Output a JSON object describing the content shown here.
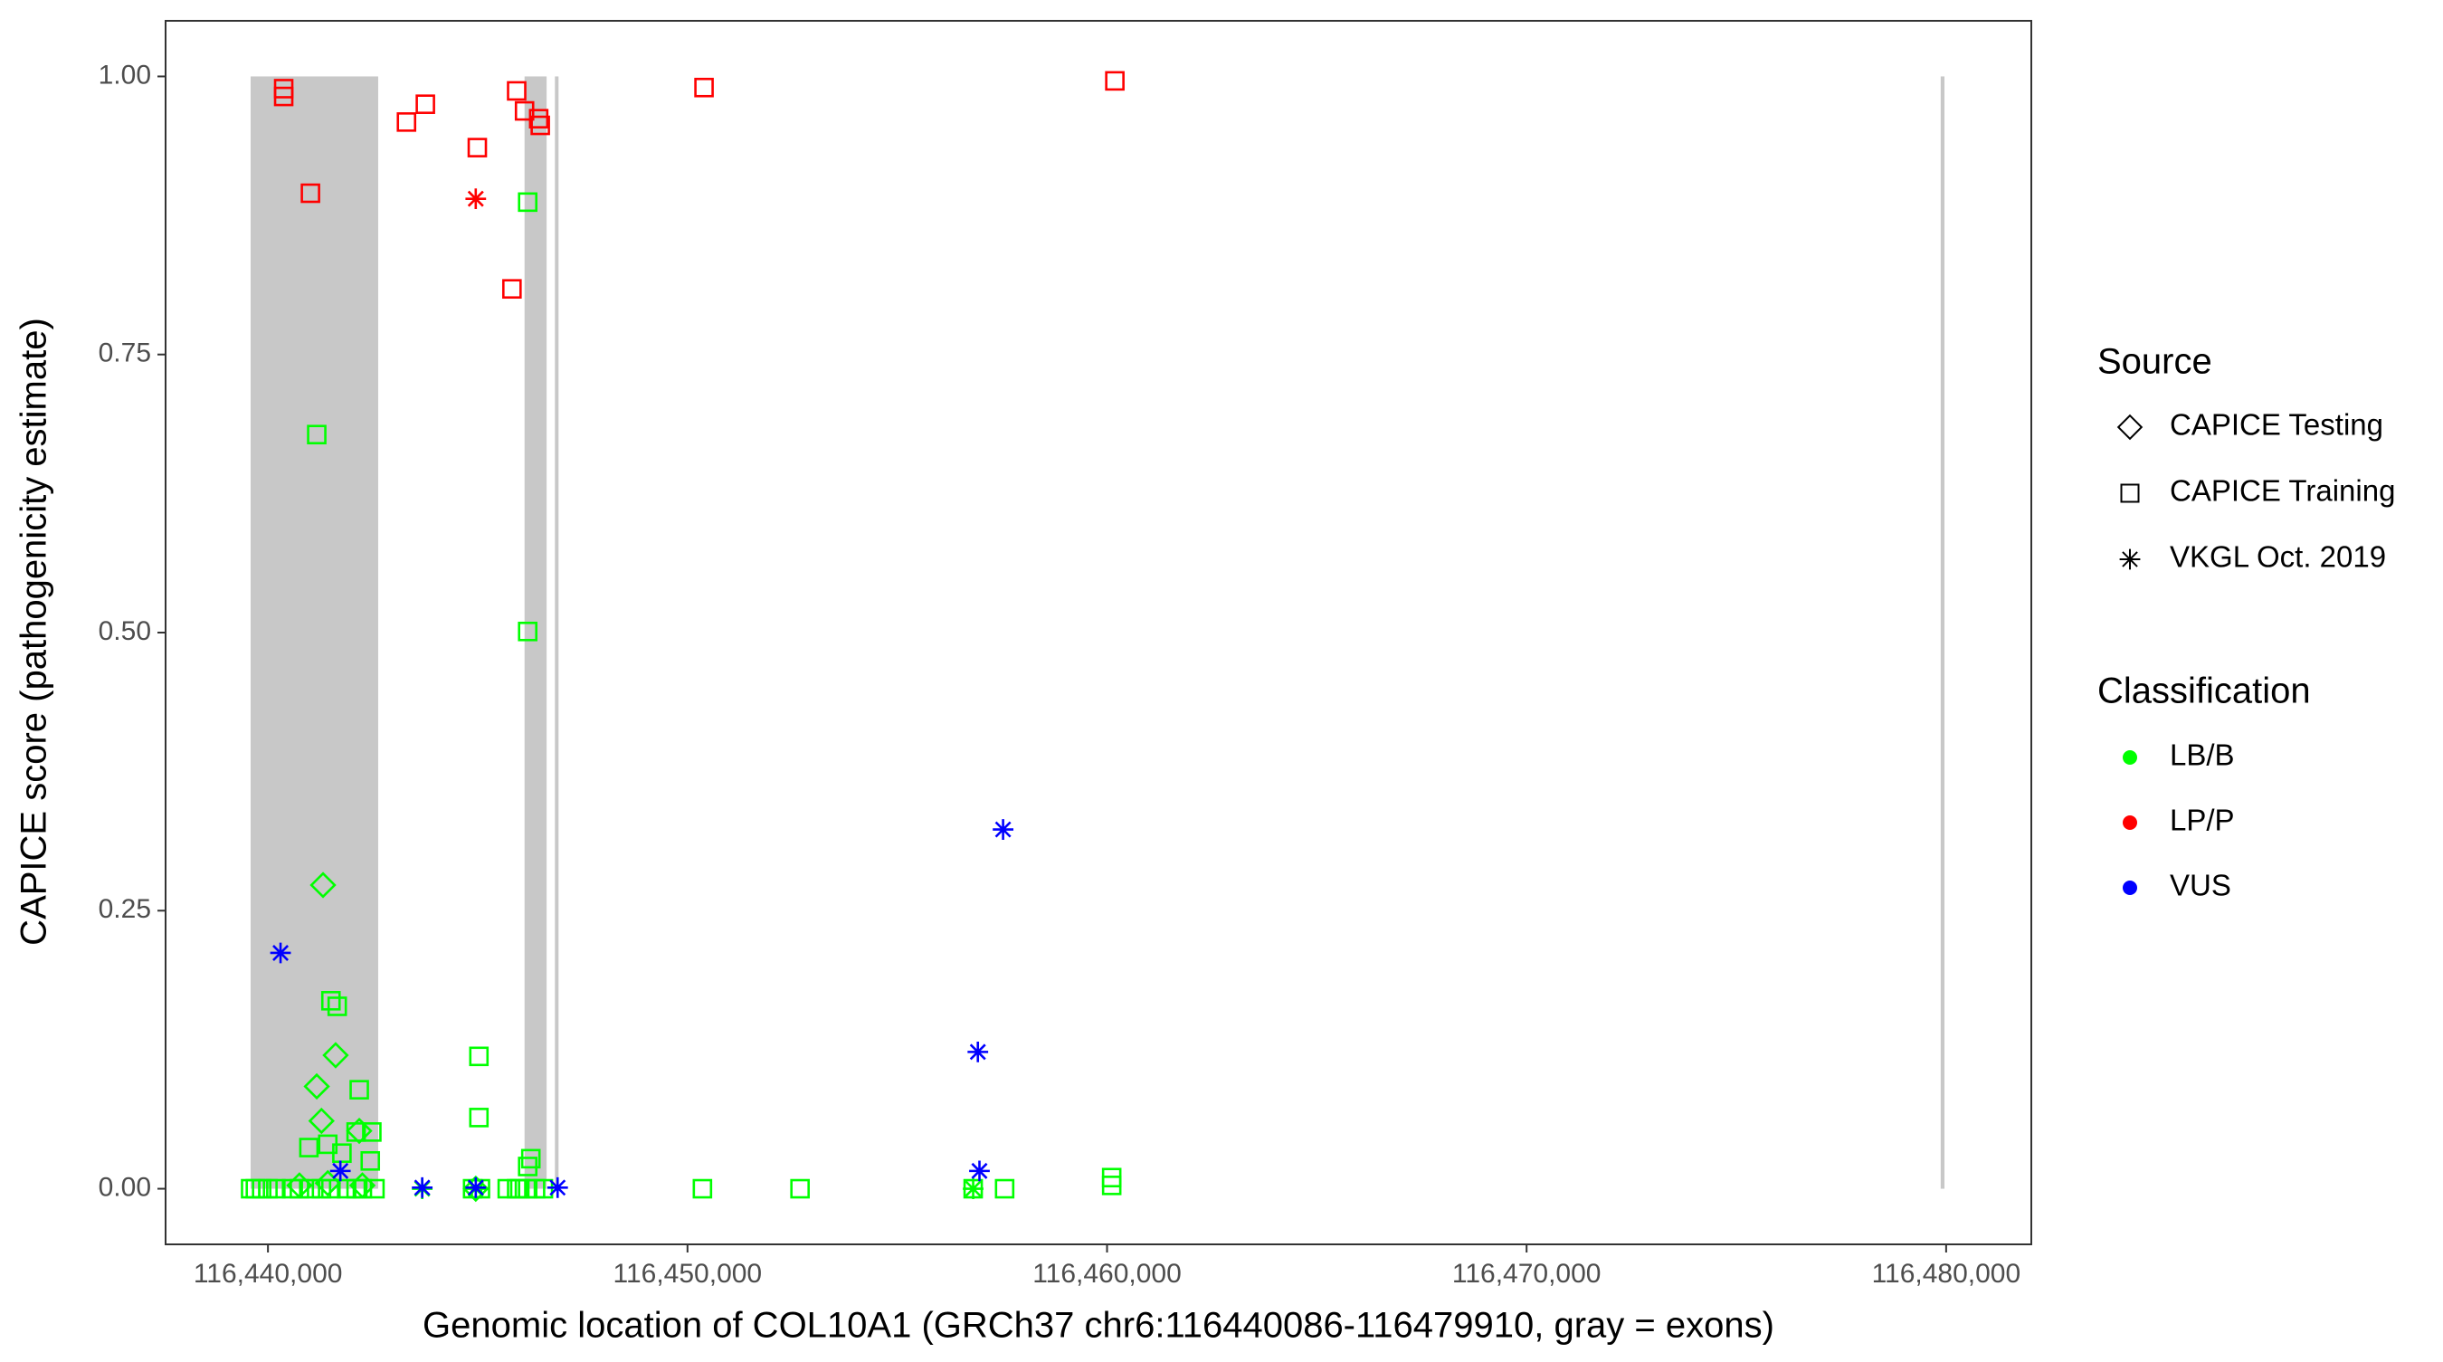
{
  "chart_data": {
    "type": "scatter",
    "x_label": "Genomic location of COL10A1 (GRCh37 chr6:116440086-116479910, gray = exons)",
    "y_label": "CAPICE score (pathogenicity estimate)",
    "xlim": [
      116437560,
      116482030
    ],
    "ylim": [
      -0.05,
      1.05
    ],
    "xticks": [
      {
        "value": 116440000,
        "label": "116,440,000"
      },
      {
        "value": 116450000,
        "label": "116,450,000"
      },
      {
        "value": 116460000,
        "label": "116,460,000"
      },
      {
        "value": 116470000,
        "label": "116,470,000"
      },
      {
        "value": 116480000,
        "label": "116,480,000"
      }
    ],
    "yticks": [
      {
        "value": 0,
        "label": "0.00"
      },
      {
        "value": 0.25,
        "label": "0.25"
      },
      {
        "value": 0.5,
        "label": "0.50"
      },
      {
        "value": 0.75,
        "label": "0.75"
      },
      {
        "value": 1,
        "label": "1.00"
      }
    ],
    "exon_color": "#c8c8c8",
    "exons": [
      [
        116439587,
        116442627
      ],
      [
        116446116,
        116446642
      ],
      [
        116446840,
        116446900
      ],
      [
        116479870,
        116479960
      ]
    ],
    "legend_source_title": "Source",
    "sources": [
      {
        "name": "CAPICE Testing",
        "shape": "diamond"
      },
      {
        "name": "CAPICE Training",
        "shape": "square"
      },
      {
        "name": "VKGL Oct. 2019",
        "shape": "star"
      }
    ],
    "legend_class_title": "Classification",
    "classifications": [
      {
        "name": "LB/B",
        "color": "#00ff00"
      },
      {
        "name": "LP/P",
        "color": "#ff0000"
      },
      {
        "name": "VUS",
        "color": "#0000ff"
      }
    ],
    "series": [
      {
        "shape": "square",
        "color": "#00ff00",
        "x": [
          116441163,
          116446191,
          116446191,
          116445028,
          116445028,
          116441501,
          116441651,
          116442176,
          116442476,
          116442101,
          116440976,
          116441426,
          116441763,
          116442439,
          116446266,
          116446191,
          116460111,
          116460111,
          116439587,
          116439700,
          116439850,
          116440000,
          116440188,
          116440563,
          116440750,
          116441013,
          116441276,
          116441501,
          116441876,
          116442101,
          116442251,
          116442551,
          116444878,
          116445065,
          116445703,
          116445928,
          116446003,
          116446191,
          116446378,
          116446566,
          116450356,
          116452682,
          116456809,
          116457559
        ],
        "y": [
          0.678,
          0.887,
          0.501,
          0.119,
          0.064,
          0.169,
          0.164,
          0.089,
          0.051,
          0.051,
          0.037,
          0.04,
          0.032,
          0.025,
          0.027,
          0.02,
          0.01,
          0.003,
          0,
          0,
          0,
          0,
          0,
          0,
          0,
          0,
          0,
          0,
          0,
          0,
          0,
          0,
          0,
          0,
          0,
          0,
          0,
          0,
          0,
          0,
          0,
          0,
          0,
          0
        ]
      },
      {
        "shape": "diamond",
        "color": "#00ff00",
        "x": [
          116441313,
          116441613,
          116441163,
          116441276,
          116442176,
          116440750,
          116441426,
          116442251,
          116444953
        ],
        "y": [
          0.273,
          0.12,
          0.092,
          0.061,
          0.052,
          0.003,
          0.005,
          0.003,
          0
        ]
      },
      {
        "shape": "star",
        "color": "#00ff00",
        "x": [
          116443677,
          116444953,
          116456809
        ],
        "y": [
          0,
          0,
          0
        ]
      },
      {
        "shape": "square",
        "color": "#ff0000",
        "x": [
          116440375,
          116440375,
          116441013,
          116443302,
          116443752,
          116444990,
          116445816,
          116445928,
          116446116,
          116446453,
          116446491,
          116450394,
          116460186
        ],
        "y": [
          0.989,
          0.982,
          0.895,
          0.959,
          0.975,
          0.936,
          0.809,
          0.987,
          0.969,
          0.962,
          0.956,
          0.99,
          0.996
        ]
      },
      {
        "shape": "star",
        "color": "#ff0000",
        "x": [
          116444953
        ],
        "y": [
          0.89
        ]
      },
      {
        "shape": "star",
        "color": "#0000ff",
        "x": [
          116440300,
          116441726,
          116443677,
          116444953,
          116446904,
          116457522,
          116456921,
          116456959
        ],
        "y": [
          0.212,
          0.016,
          0.001,
          0.001,
          0.001,
          0.323,
          0.123,
          0.016
        ]
      }
    ]
  }
}
